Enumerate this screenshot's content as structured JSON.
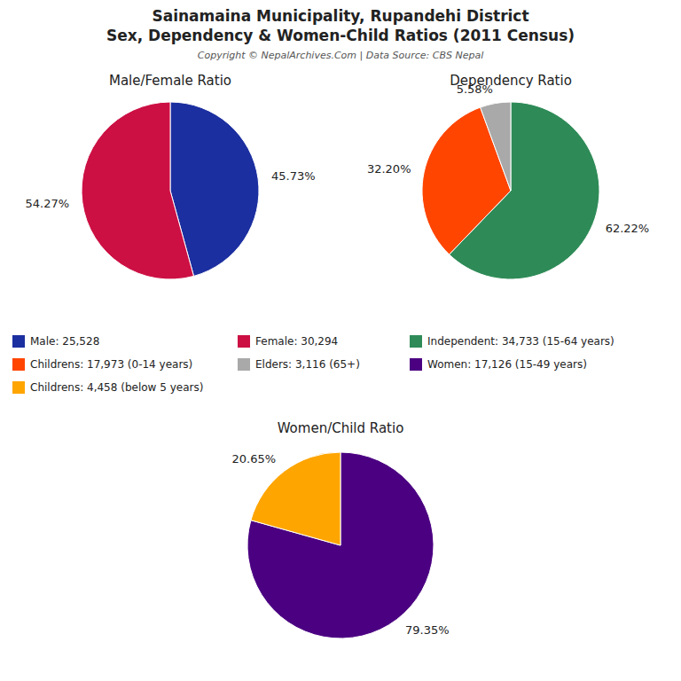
{
  "title": "Sainamaina Municipality, Rupandehi District",
  "subtitle": "Sex, Dependency & Women-Child Ratios (2011 Census)",
  "annotations": [
    "Copyright © NepalArchives.Com | Data Source: CBS Nepal"
  ],
  "chart_data": [
    {
      "type": "pie",
      "title": "Male/Female Ratio",
      "categories": [
        "Male: 25,528",
        "Female: 30,294"
      ],
      "values": [
        45.73,
        54.27
      ],
      "value_labels": [
        "45.73%",
        "54.27%"
      ],
      "colors": [
        "#1C2FA0",
        "#CC1044"
      ],
      "data_labels": true,
      "legend": "center"
    },
    {
      "type": "pie",
      "title": "Dependency Ratio",
      "categories": [
        "Independent: 34,733 (15-64 years)",
        "Childrens: 17,973 (0-14 years)",
        "Elders: 3,116 (65+)"
      ],
      "values": [
        62.22,
        32.2,
        5.58
      ],
      "value_labels": [
        "62.22%",
        "32.20%",
        "5.58%"
      ],
      "colors": [
        "#2E8B57",
        "#FF4500",
        "#A9A9A9"
      ],
      "data_labels": true,
      "legend": "center"
    },
    {
      "type": "pie",
      "title": "Women/Child Ratio",
      "categories": [
        "Women: 17,126 (15-49 years)",
        "Childrens: 4,458 (below 5 years)"
      ],
      "values": [
        79.35,
        20.65
      ],
      "value_labels": [
        "79.35%",
        "20.65%"
      ],
      "colors": [
        "#4B0082",
        "#FFA500"
      ],
      "data_labels": true,
      "legend": "center"
    }
  ]
}
